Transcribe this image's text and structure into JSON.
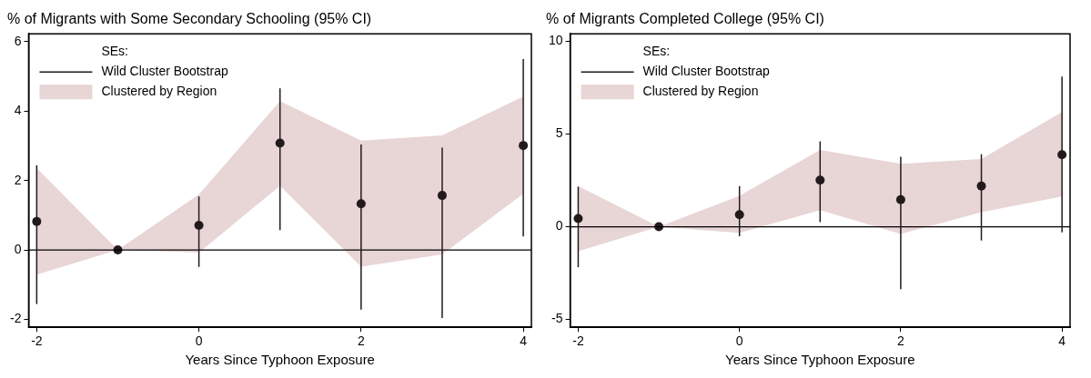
{
  "chart_data": [
    {
      "type": "scatter",
      "title": "% of Migrants with Some Secondary Schooling (95% CI)",
      "xlabel": "Years Since Typhoon Exposure",
      "legend_title": "SEs:",
      "legend": "top left",
      "grid": false,
      "marker": "circle",
      "x": [
        -2,
        -1,
        0,
        1,
        2,
        3,
        4
      ],
      "xlim": [
        -2.1,
        4.1
      ],
      "xticks": [
        -2,
        0,
        2,
        4
      ],
      "ylim": [
        -2.23,
        6.23
      ],
      "yticks": [
        -2,
        0,
        2,
        4,
        6
      ],
      "ref_lines": [
        {
          "axis": "y",
          "value": 0,
          "color": "#000000"
        }
      ],
      "series": [
        {
          "name": "Wild Cluster Bootstrap",
          "color": "#231a1c",
          "values": [
            0.82,
            0,
            0.71,
            3.08,
            1.33,
            1.57,
            3.01
          ],
          "errors": [
            [
              -1.56,
              2.44
            ],
            null,
            [
              -0.49,
              1.54
            ],
            [
              0.57,
              4.66
            ],
            [
              -1.72,
              3.04
            ],
            [
              -1.96,
              2.95
            ],
            [
              0.39,
              5.5
            ]
          ]
        },
        {
          "name": "Clustered by Region",
          "type": "area",
          "color": "#e8d5d6",
          "values": [
            null,
            null,
            null,
            null,
            null,
            null,
            null
          ],
          "lower": [
            -0.71,
            0,
            -0.08,
            1.85,
            -0.48,
            -0.13,
            1.62
          ],
          "upper": [
            2.36,
            0,
            1.6,
            4.29,
            3.15,
            3.3,
            4.42
          ]
        }
      ]
    },
    {
      "type": "scatter",
      "title": "% of Migrants Completed College (95% CI)",
      "xlabel": "Years Since Typhoon Exposure",
      "legend_title": "SEs:",
      "legend": "top left",
      "grid": false,
      "marker": "circle",
      "x": [
        -2,
        -1,
        0,
        1,
        2,
        3,
        4
      ],
      "xlim": [
        -2.1,
        4.1
      ],
      "xticks": [
        -2,
        0,
        2,
        4
      ],
      "ylim": [
        -5.42,
        10.4
      ],
      "yticks": [
        -5,
        0,
        5,
        10
      ],
      "ref_lines": [
        {
          "axis": "y",
          "value": 0,
          "color": "#000000"
        }
      ],
      "series": [
        {
          "name": "Wild Cluster Bootstrap",
          "color": "#231a1c",
          "values": [
            0.44,
            0,
            0.65,
            2.51,
            1.46,
            2.19,
            3.88
          ],
          "errors": [
            [
              -2.18,
              2.16
            ],
            null,
            [
              -0.51,
              2.19
            ],
            [
              0.25,
              4.6
            ],
            [
              -3.37,
              3.77
            ],
            [
              -0.74,
              3.91
            ],
            [
              -0.3,
              8.1
            ]
          ]
        },
        {
          "name": "Clustered by Region",
          "type": "area",
          "color": "#e8d5d6",
          "values": [
            null,
            null,
            null,
            null,
            null,
            null,
            null
          ],
          "lower": [
            -1.32,
            0,
            -0.33,
            0.89,
            -0.39,
            0.79,
            1.63
          ],
          "upper": [
            2.19,
            0,
            1.67,
            4.14,
            3.39,
            3.65,
            6.19
          ]
        }
      ]
    }
  ]
}
